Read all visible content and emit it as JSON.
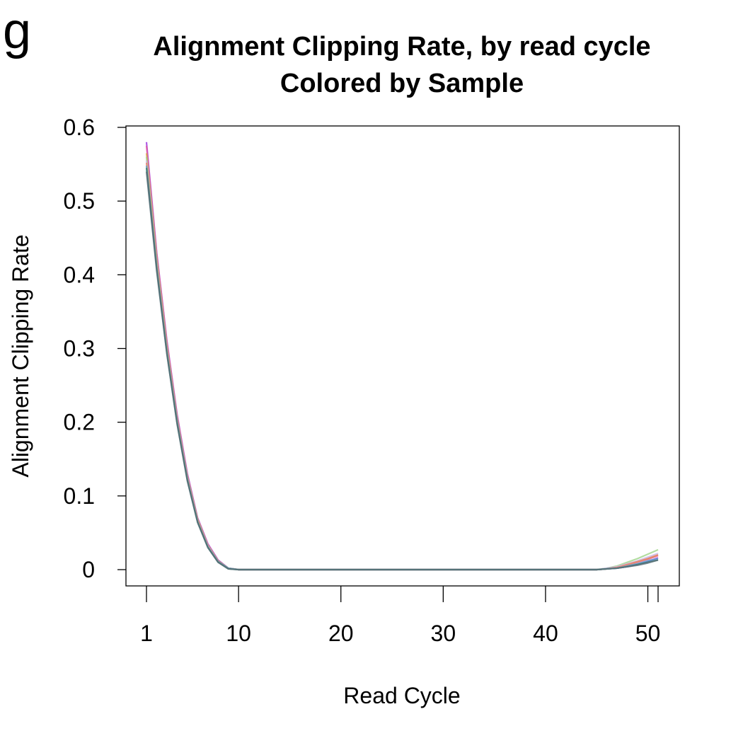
{
  "panel_letter": "g",
  "chart_data": {
    "type": "line",
    "title": "Alignment Clipping Rate, by read cycle",
    "subtitle": "Colored by Sample",
    "xlabel": "Read Cycle",
    "ylabel": "Alignment Clipping Rate",
    "xlim": [
      1,
      51
    ],
    "ylim": [
      0,
      0.6
    ],
    "x_ticks": [
      1,
      10,
      20,
      30,
      40,
      50
    ],
    "x_extra_tick": 51,
    "y_ticks": [
      0,
      0.1,
      0.2,
      0.3,
      0.4,
      0.5,
      0.6
    ],
    "y_tick_labels": [
      "0",
      "0.1",
      "0.2",
      "0.3",
      "0.4",
      "0.5",
      "0.6"
    ],
    "grid": false,
    "legend": "none",
    "x": [
      1,
      2,
      3,
      4,
      5,
      6,
      7,
      8,
      9,
      10,
      11,
      12,
      13,
      14,
      15,
      16,
      17,
      18,
      19,
      20,
      21,
      22,
      23,
      24,
      25,
      26,
      27,
      28,
      29,
      30,
      31,
      32,
      33,
      34,
      35,
      36,
      37,
      38,
      39,
      40,
      41,
      42,
      43,
      44,
      45,
      46,
      47,
      48,
      49,
      50,
      51
    ],
    "series": [
      {
        "color": "#9b30e0",
        "values": [
          0.58,
          0.43,
          0.31,
          0.21,
          0.13,
          0.07,
          0.035,
          0.013,
          0.002,
          0,
          0,
          0,
          0,
          0,
          0,
          0,
          0,
          0,
          0,
          0,
          0,
          0,
          0,
          0,
          0,
          0,
          0,
          0,
          0,
          0,
          0,
          0,
          0,
          0,
          0,
          0,
          0,
          0,
          0,
          0,
          0,
          0,
          0,
          0,
          0,
          0.001,
          0.002,
          0.004,
          0.007,
          0.011,
          0.016
        ]
      },
      {
        "color": "#e05aa0",
        "values": [
          0.575,
          0.428,
          0.308,
          0.208,
          0.128,
          0.069,
          0.034,
          0.012,
          0.002,
          0,
          0,
          0,
          0,
          0,
          0,
          0,
          0,
          0,
          0,
          0,
          0,
          0,
          0,
          0,
          0,
          0,
          0,
          0,
          0,
          0,
          0,
          0,
          0,
          0,
          0,
          0,
          0,
          0,
          0,
          0,
          0,
          0,
          0,
          0,
          0,
          0.001,
          0.003,
          0.006,
          0.01,
          0.014,
          0.019
        ]
      },
      {
        "color": "#d9a94a",
        "values": [
          0.565,
          0.422,
          0.303,
          0.205,
          0.126,
          0.068,
          0.033,
          0.012,
          0.002,
          0,
          0,
          0,
          0,
          0,
          0,
          0,
          0,
          0,
          0,
          0,
          0,
          0,
          0,
          0,
          0,
          0,
          0,
          0,
          0,
          0,
          0,
          0,
          0,
          0,
          0,
          0,
          0,
          0,
          0,
          0,
          0,
          0,
          0,
          0,
          0,
          0.001,
          0.003,
          0.007,
          0.011,
          0.015,
          0.02
        ]
      },
      {
        "color": "#9fd48a",
        "values": [
          0.56,
          0.418,
          0.3,
          0.203,
          0.125,
          0.067,
          0.032,
          0.011,
          0.002,
          0,
          0,
          0,
          0,
          0,
          0,
          0,
          0,
          0,
          0,
          0,
          0,
          0,
          0,
          0,
          0,
          0,
          0,
          0,
          0,
          0,
          0,
          0,
          0,
          0,
          0,
          0,
          0,
          0,
          0,
          0,
          0,
          0,
          0,
          0,
          0,
          0.002,
          0.005,
          0.01,
          0.015,
          0.021,
          0.027
        ]
      },
      {
        "color": "#c8b4e6",
        "values": [
          0.555,
          0.415,
          0.298,
          0.202,
          0.124,
          0.066,
          0.032,
          0.011,
          0.002,
          0,
          0,
          0,
          0,
          0,
          0,
          0,
          0,
          0,
          0,
          0,
          0,
          0,
          0,
          0,
          0,
          0,
          0,
          0,
          0,
          0,
          0,
          0,
          0,
          0,
          0,
          0,
          0,
          0,
          0,
          0,
          0,
          0,
          0,
          0,
          0,
          0.002,
          0.004,
          0.008,
          0.012,
          0.017,
          0.022
        ]
      },
      {
        "color": "#e8826a",
        "values": [
          0.552,
          0.413,
          0.297,
          0.201,
          0.123,
          0.066,
          0.031,
          0.011,
          0.002,
          0,
          0,
          0,
          0,
          0,
          0,
          0,
          0,
          0,
          0,
          0,
          0,
          0,
          0,
          0,
          0,
          0,
          0,
          0,
          0,
          0,
          0,
          0,
          0,
          0,
          0,
          0,
          0,
          0,
          0,
          0,
          0,
          0,
          0,
          0,
          0,
          0.001,
          0.003,
          0.007,
          0.011,
          0.015,
          0.02
        ]
      },
      {
        "color": "#5aa0c8",
        "values": [
          0.548,
          0.41,
          0.295,
          0.2,
          0.122,
          0.065,
          0.031,
          0.011,
          0.002,
          0,
          0,
          0,
          0,
          0,
          0,
          0,
          0,
          0,
          0,
          0,
          0,
          0,
          0,
          0,
          0,
          0,
          0,
          0,
          0,
          0,
          0,
          0,
          0,
          0,
          0,
          0,
          0,
          0,
          0,
          0,
          0,
          0,
          0,
          0,
          0,
          0.001,
          0.002,
          0.005,
          0.008,
          0.012,
          0.015
        ]
      },
      {
        "color": "#2f7a6a",
        "values": [
          0.545,
          0.408,
          0.293,
          0.198,
          0.121,
          0.064,
          0.03,
          0.01,
          0.001,
          0,
          0,
          0,
          0,
          0,
          0,
          0,
          0,
          0,
          0,
          0,
          0,
          0,
          0,
          0,
          0,
          0,
          0,
          0,
          0,
          0,
          0,
          0,
          0,
          0,
          0,
          0,
          0,
          0,
          0,
          0,
          0,
          0,
          0,
          0,
          0,
          0.001,
          0.002,
          0.004,
          0.007,
          0.01,
          0.013
        ]
      },
      {
        "color": "#5a6e78",
        "values": [
          0.54,
          0.405,
          0.292,
          0.197,
          0.12,
          0.064,
          0.03,
          0.01,
          0.001,
          0,
          0,
          0,
          0,
          0,
          0,
          0,
          0,
          0,
          0,
          0,
          0,
          0,
          0,
          0,
          0,
          0,
          0,
          0,
          0,
          0,
          0,
          0,
          0,
          0,
          0,
          0,
          0,
          0,
          0,
          0,
          0,
          0,
          0,
          0,
          0,
          0.001,
          0.002,
          0.004,
          0.006,
          0.009,
          0.013
        ]
      }
    ]
  }
}
